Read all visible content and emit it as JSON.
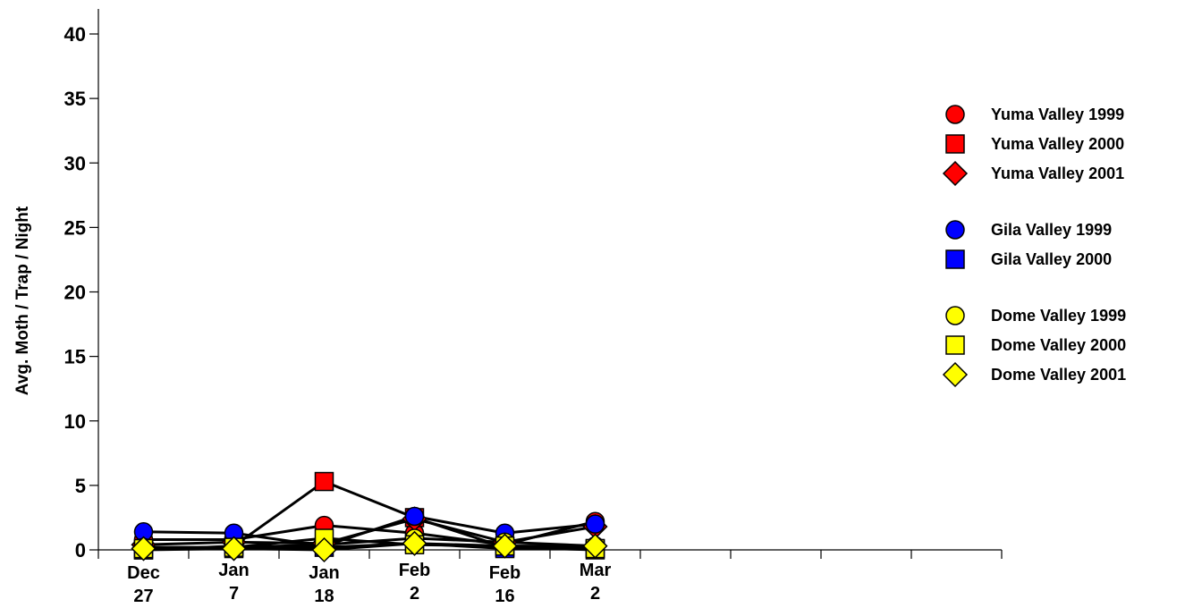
{
  "chart_data": {
    "type": "line",
    "categories": [
      "Dec 27",
      "Jan 7",
      "Jan 18",
      "Feb 2",
      "Feb 16",
      "Mar 2"
    ],
    "x_labels": [
      [
        "Dec",
        "27"
      ],
      [
        "Jan",
        "7"
      ],
      [
        "Jan",
        "18"
      ],
      [
        "Feb",
        "2"
      ],
      [
        "Feb",
        "16"
      ],
      [
        "Mar",
        "2"
      ]
    ],
    "ylabel": "Avg. Moth / Trap / Night",
    "ylim": [
      0,
      40
    ],
    "y_ticks": [
      0,
      5,
      10,
      15,
      20,
      25,
      30,
      35,
      40
    ],
    "x_slots": 10,
    "grid": false,
    "legend_position": "right",
    "line_color": "#000000",
    "series": [
      {
        "name": "Yuma Valley 1999",
        "marker": "circle",
        "color": "#ff0000",
        "values": [
          0.8,
          0.8,
          1.9,
          1.3,
          0.4,
          2.2
        ]
      },
      {
        "name": "Yuma Valley 2000",
        "marker": "square",
        "color": "#ff0000",
        "values": [
          0.0,
          0.3,
          5.3,
          2.5,
          0.2,
          0.0
        ]
      },
      {
        "name": "Yuma Valley 2001",
        "marker": "diamond",
        "color": "#ff0000",
        "values": [
          0.4,
          0.6,
          0.5,
          2.4,
          0.6,
          1.8
        ]
      },
      {
        "name": "Gila Valley 1999",
        "marker": "circle",
        "color": "#0000ff",
        "values": [
          1.4,
          1.3,
          0.3,
          2.6,
          1.3,
          2.0
        ]
      },
      {
        "name": "Gila Valley 2000",
        "marker": "square",
        "color": "#0000ff",
        "values": [
          0.0,
          0.1,
          0.2,
          0.5,
          0.1,
          0.1
        ]
      },
      {
        "name": "Dome Valley 1999",
        "marker": "circle",
        "color": "#ffff00",
        "values": [
          0.2,
          0.2,
          0.4,
          0.9,
          0.6,
          0.3
        ]
      },
      {
        "name": "Dome Valley 2000",
        "marker": "square",
        "color": "#ffff00",
        "values": [
          0.1,
          0.2,
          0.9,
          0.4,
          0.3,
          0.1
        ]
      },
      {
        "name": "Dome Valley 2001",
        "marker": "diamond",
        "color": "#ffff00",
        "values": [
          0.1,
          0.1,
          0.0,
          0.5,
          0.3,
          0.3
        ]
      }
    ],
    "legend_groups": [
      [
        0,
        1,
        2
      ],
      [
        3,
        4
      ],
      [
        5,
        6,
        7
      ]
    ]
  }
}
